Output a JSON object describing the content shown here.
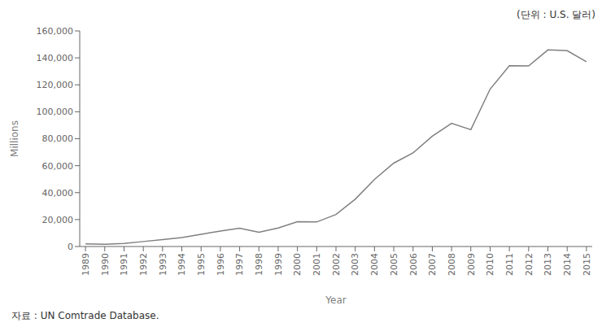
{
  "chart_data": {
    "type": "line",
    "annotation": "(단위 : U.S.  달러)",
    "caption": "자료 : UN  Comtrade  Database.",
    "x_label": "Year",
    "y_label": "Millions",
    "x": [
      1989,
      1990,
      1991,
      1992,
      1993,
      1994,
      1995,
      1996,
      1997,
      1998,
      1999,
      2000,
      2001,
      2002,
      2003,
      2004,
      2005,
      2006,
      2007,
      2008,
      2009,
      2010,
      2011,
      2012,
      2013,
      2014,
      2015
    ],
    "values": [
      2000,
      1700,
      2300,
      3700,
      5200,
      6600,
      9100,
      11500,
      13600,
      10600,
      13700,
      18400,
      18200,
      23800,
      35100,
      49800,
      61900,
      69500,
      81900,
      91400,
      86700,
      116800,
      134200,
      134000,
      145900,
      145300,
      137100
    ],
    "color": "#808080",
    "xlim": [
      1988.7,
      2015.3
    ],
    "xticks": [
      1989,
      1990,
      1991,
      1992,
      1993,
      1994,
      1995,
      1996,
      1997,
      1998,
      1999,
      2000,
      2001,
      2002,
      2003,
      2004,
      2005,
      2006,
      2007,
      2008,
      2009,
      2010,
      2011,
      2012,
      2013,
      2014,
      2015
    ],
    "ylim": [
      0,
      160000
    ],
    "yticks": [
      0,
      {
        "value": 20000,
        "label": "20,000"
      },
      {
        "value": 40000,
        "label": "40,000"
      },
      {
        "value": 60000,
        "label": "60,000"
      },
      {
        "value": 80000,
        "label": "80,000"
      },
      {
        "value": 100000,
        "label": "100,000"
      },
      {
        "value": 120000,
        "label": "120,000"
      },
      {
        "value": 140000,
        "label": "140,000"
      },
      {
        "value": 160000,
        "label": "160,000"
      }
    ],
    "grid": false
  }
}
